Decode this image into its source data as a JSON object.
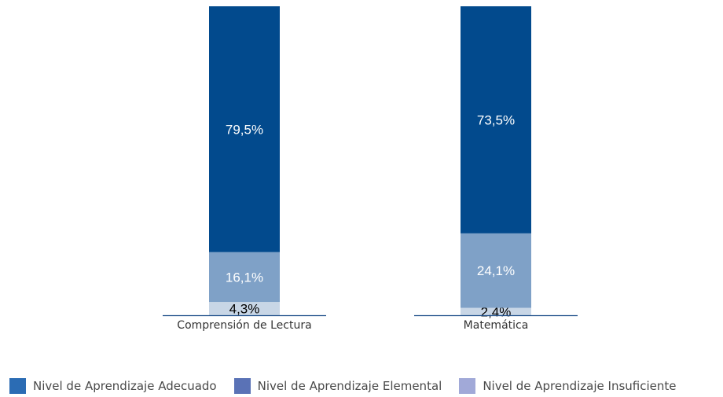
{
  "chart_data": {
    "type": "bar",
    "stacked": true,
    "normalized_percent": true,
    "categories": [
      "Comprensión de Lectura",
      "Matemática"
    ],
    "series": [
      {
        "name": "Nivel de Aprendizaje Insuficiente",
        "values": [
          4.3,
          2.4
        ],
        "labels": [
          "4,3%",
          "2,4%"
        ],
        "color": "#c8d6e6",
        "label_color": "#000000"
      },
      {
        "name": "Nivel de Aprendizaje Elemental",
        "values": [
          16.1,
          24.1
        ],
        "labels": [
          "16,1%",
          "24,1%"
        ],
        "color": "#7fa1c7",
        "label_color": "#ffffff"
      },
      {
        "name": "Nivel de Aprendizaje Adecuado",
        "values": [
          79.5,
          73.5
        ],
        "labels": [
          "79,5%",
          "73,5%"
        ],
        "color": "#024a8d",
        "label_color": "#ffffff"
      }
    ],
    "ylim": [
      0,
      100
    ],
    "grid": false,
    "legend_position": "bottom"
  },
  "legend": [
    {
      "label": "Nivel de Aprendizaje Adecuado",
      "color": "#2b6cb4"
    },
    {
      "label": "Nivel de Aprendizaje Elemental",
      "color": "#5a72b6"
    },
    {
      "label": "Nivel de Aprendizaje Insuficiente",
      "color": "#a1a9d8"
    }
  ]
}
